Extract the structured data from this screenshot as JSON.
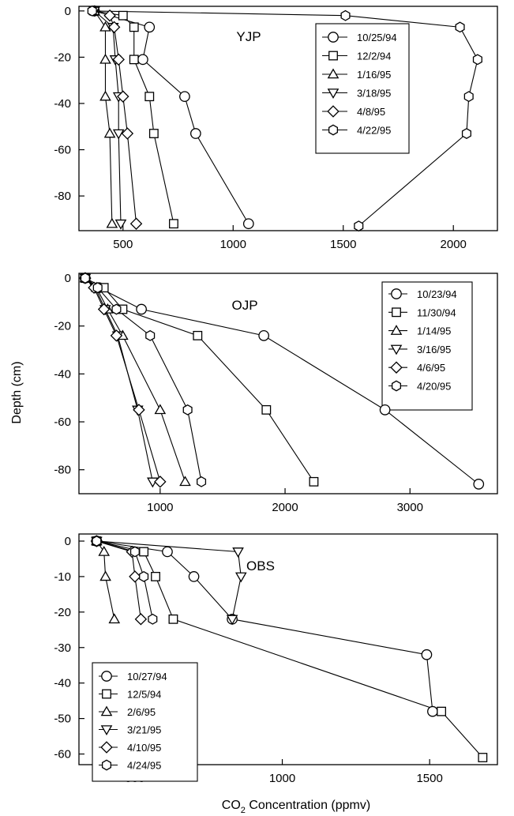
{
  "figure": {
    "ylabel": "Depth (cm)",
    "xlabel_main": "CO",
    "xlabel_sub": "2",
    "xlabel_rest": " Concentration (ppmv)"
  },
  "chart_data": [
    {
      "type": "line",
      "title": "YJP",
      "xlim": [
        300,
        2200
      ],
      "ylim": [
        -95,
        2
      ],
      "xticks": [
        500,
        1000,
        1500,
        2000
      ],
      "yticks": [
        0,
        -20,
        -40,
        -60,
        -80
      ],
      "legend_position": "top-right",
      "series": [
        {
          "name": "10/25/94",
          "marker": "circle",
          "x": [
            370,
            620,
            590,
            780,
            830,
            1070
          ],
          "y": [
            0,
            -7,
            -21,
            -37,
            -53,
            -92
          ]
        },
        {
          "name": "12/2/94",
          "marker": "square",
          "x": [
            370,
            500,
            550,
            550,
            620,
            640,
            730
          ],
          "y": [
            0,
            -2,
            -7,
            -21,
            -37,
            -53,
            -92
          ]
        },
        {
          "name": "1/16/95",
          "marker": "triangle-up",
          "x": [
            370,
            420,
            420,
            420,
            440,
            450
          ],
          "y": [
            0,
            -7,
            -21,
            -37,
            -53,
            -92
          ]
        },
        {
          "name": "3/18/95",
          "marker": "triangle-down",
          "x": [
            370,
            455,
            465,
            480,
            480,
            490
          ],
          "y": [
            0,
            -7,
            -21,
            -37,
            -53,
            -92
          ]
        },
        {
          "name": "4/8/95",
          "marker": "diamond",
          "x": [
            440,
            460,
            480,
            500,
            520,
            560
          ],
          "y": [
            -2,
            -7,
            -21,
            -37,
            -53,
            -92
          ]
        },
        {
          "name": "4/22/95",
          "marker": "hexagon",
          "x": [
            360,
            1510,
            2030,
            2110,
            2070,
            2060,
            1570
          ],
          "y": [
            0,
            -2,
            -7,
            -21,
            -37,
            -53,
            -93
          ]
        }
      ]
    },
    {
      "type": "line",
      "title": "OJP",
      "xlim": [
        350,
        3700
      ],
      "ylim": [
        -90,
        2
      ],
      "xticks": [
        1000,
        2000,
        3000
      ],
      "yticks": [
        0,
        -20,
        -40,
        -60,
        -80
      ],
      "legend_position": "top-right",
      "series": [
        {
          "name": "10/23/94",
          "marker": "circle",
          "x": [
            400,
            510,
            850,
            1830,
            2800,
            3550
          ],
          "y": [
            0,
            -4,
            -13,
            -24,
            -55,
            -86
          ]
        },
        {
          "name": "11/30/94",
          "marker": "square",
          "x": [
            400,
            550,
            700,
            1300,
            1850,
            2230
          ],
          "y": [
            0,
            -4,
            -13,
            -24,
            -55,
            -85
          ]
        },
        {
          "name": "1/14/95",
          "marker": "triangle-up",
          "x": [
            400,
            490,
            580,
            700,
            1000,
            1200
          ],
          "y": [
            0,
            -4,
            -13,
            -24,
            -55,
            -85
          ]
        },
        {
          "name": "3/16/95",
          "marker": "triangle-down",
          "x": [
            400,
            480,
            560,
            660,
            820,
            940
          ],
          "y": [
            0,
            -4,
            -13,
            -24,
            -55,
            -85
          ]
        },
        {
          "name": "4/6/95",
          "marker": "diamond",
          "x": [
            400,
            470,
            550,
            650,
            830,
            1000
          ],
          "y": [
            0,
            -4,
            -13,
            -24,
            -55,
            -85
          ]
        },
        {
          "name": "4/20/95",
          "marker": "hexagon",
          "x": [
            400,
            500,
            650,
            920,
            1220,
            1330
          ],
          "y": [
            0,
            -4,
            -13,
            -24,
            -55,
            -85
          ]
        }
      ]
    },
    {
      "type": "line",
      "title": "OBS",
      "xlim": [
        310,
        1730
      ],
      "ylim": [
        -63,
        2
      ],
      "xticks": [
        500,
        1000,
        1500
      ],
      "yticks": [
        0,
        -10,
        -20,
        -30,
        -40,
        -50,
        -60
      ],
      "legend_position": "bottom-left",
      "series": [
        {
          "name": "10/27/94",
          "marker": "circle",
          "x": [
            370,
            610,
            700,
            830,
            1490,
            1510
          ],
          "y": [
            0,
            -3,
            -10,
            -22,
            -32,
            -48
          ]
        },
        {
          "name": "12/5/94",
          "marker": "square",
          "x": [
            370,
            530,
            570,
            630,
            1540,
            1680
          ],
          "y": [
            0,
            -3,
            -10,
            -22,
            -48,
            -61
          ]
        },
        {
          "name": "2/6/95",
          "marker": "triangle-up",
          "x": [
            370,
            395,
            400,
            430
          ],
          "y": [
            0,
            -3,
            -10,
            -22
          ]
        },
        {
          "name": "3/21/95",
          "marker": "triangle-down",
          "x": [
            370,
            850,
            860,
            830
          ],
          "y": [
            0,
            -3,
            -10,
            -22
          ]
        },
        {
          "name": "4/10/95",
          "marker": "diamond",
          "x": [
            370,
            490,
            500,
            520
          ],
          "y": [
            0,
            -3,
            -10,
            -22
          ]
        },
        {
          "name": "4/24/95",
          "marker": "hexagon",
          "x": [
            370,
            500,
            530,
            560
          ],
          "y": [
            0,
            -3,
            -10,
            -22
          ]
        }
      ]
    }
  ]
}
